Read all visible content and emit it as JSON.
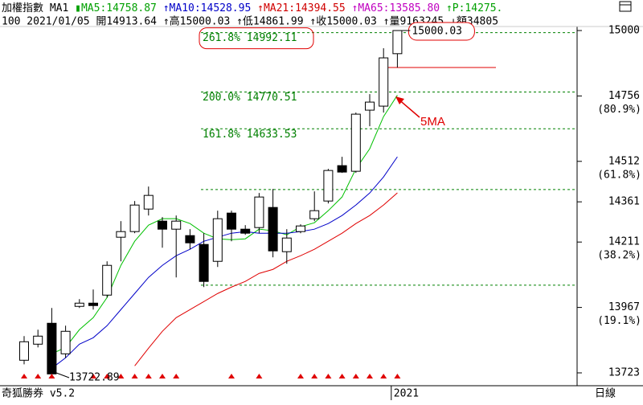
{
  "header": {
    "line1": [
      {
        "text": "加權指數 MA1 ",
        "color": "#000000"
      },
      {
        "text": "▮MA5:14758.87 ",
        "color": "#00a000"
      },
      {
        "text": "↑MA10:14528.95 ",
        "color": "#0000c8"
      },
      {
        "text": "↑MA21:14394.55 ",
        "color": "#d00000"
      },
      {
        "text": "↑MA65:13585.80 ",
        "color": "#c000c0"
      },
      {
        "text": "↑P:14275.",
        "color": "#00a000"
      }
    ],
    "line2": "100 2021/01/05 開14913.64 ↑高15000.03 ↑低14861.99 ↑收15000.03 ↑量9163245 ↓額34805"
  },
  "footer": {
    "app": "奇狐勝券 v5.2",
    "year": "2021",
    "period": "日線"
  },
  "chart_data": {
    "type": "candlestick",
    "categories": [
      null,
      null,
      null,
      null,
      null,
      null,
      null,
      null,
      null,
      null,
      null,
      null,
      null,
      null,
      null,
      null,
      null,
      null,
      null,
      null,
      null,
      null,
      null,
      null,
      null,
      null,
      null,
      null
    ],
    "open": [
      13770,
      13830,
      13908,
      13794,
      13971,
      13983,
      14013,
      14229,
      14250,
      14334,
      14289,
      14259,
      14235,
      14202,
      14139,
      14319,
      14259,
      14265,
      14340,
      14175,
      14250,
      14298,
      14364,
      14496,
      14475,
      14703,
      14718,
      14913.64
    ],
    "high": [
      13860,
      13884,
      13965,
      13899,
      13998,
      14034,
      14139,
      14289,
      14364,
      14418,
      14304,
      14310,
      14259,
      14244,
      14328,
      14328,
      14274,
      14394,
      14409,
      14259,
      14277,
      14400,
      14484,
      14529,
      14694,
      14763,
      14934,
      15000.03
    ],
    "low": [
      13755,
      13818,
      13723,
      13779,
      13965,
      13959,
      14004,
      14139,
      14244,
      14310,
      14190,
      14079,
      14184,
      14043,
      14118,
      14214,
      14238,
      14244,
      14154,
      14130,
      14244,
      14289,
      14355,
      14469,
      14469,
      14643,
      14694,
      14861.99
    ],
    "close": [
      13839,
      13860,
      13719,
      13878,
      13983,
      13974,
      14124,
      14250,
      14349,
      14385,
      14259,
      14289,
      14208,
      14064,
      14298,
      14259,
      14244,
      14379,
      14178,
      14226,
      14271,
      14328,
      14478,
      14472,
      14688,
      14733,
      14898,
      15000.03
    ],
    "up_color": "#ffffff",
    "down_color": "#000000",
    "series": [
      {
        "name": "MA5",
        "color": "#00c000",
        "values": [
          null,
          null,
          13794,
          13818,
          13884,
          13929,
          14004,
          14124,
          14214,
          14274,
          14298,
          14298,
          14280,
          14244,
          14223,
          14220,
          14223,
          14259,
          14253,
          14238,
          14268,
          14283,
          14328,
          14379,
          14484,
          14559,
          14679,
          14758.87
        ]
      },
      {
        "name": "MA10",
        "color": "#0000c8",
        "values": [
          null,
          null,
          13740,
          13779,
          13830,
          13854,
          13899,
          13959,
          14019,
          14079,
          14124,
          14160,
          14184,
          14214,
          14229,
          14244,
          14250,
          14244,
          14244,
          14244,
          14250,
          14259,
          14280,
          14310,
          14349,
          14394,
          14454,
          14528.95
        ]
      },
      {
        "name": "MA21",
        "color": "#e00000",
        "values": [
          null,
          null,
          null,
          null,
          null,
          null,
          null,
          null,
          13749,
          13815,
          13878,
          13929,
          13959,
          13989,
          14019,
          14043,
          14064,
          14094,
          14109,
          14139,
          14160,
          14184,
          14214,
          14244,
          14280,
          14310,
          14349,
          14394.55
        ]
      }
    ],
    "signals": [
      true,
      true,
      true,
      false,
      false,
      true,
      true,
      true,
      true,
      true,
      true,
      true,
      false,
      false,
      false,
      true,
      false,
      true,
      false,
      false,
      true,
      true,
      true,
      true,
      true,
      true,
      true,
      true
    ],
    "signal_color": "#e00000",
    "ylim": [
      13675,
      15024
    ],
    "yticks": [
      15000,
      14756,
      14512,
      14361,
      14211,
      13967,
      13723
    ],
    "ytick_percent": [
      null,
      "(80.9%)",
      "(61.8%)",
      null,
      "(38.2%)",
      "(19.1%)",
      null
    ],
    "fib_levels": [
      {
        "value": 14992.11,
        "label": "261.8% 14992.11"
      },
      {
        "value": 14770.51,
        "label": "200.0% 14770.51"
      },
      {
        "value": 14633.53,
        "label": "161.8% 14633.53"
      },
      {
        "value": 14407
      },
      {
        "value": 14050
      }
    ],
    "fib_color": "#008000",
    "low_line": 14861.99,
    "annotations": {
      "high": "15000.03",
      "low": "13722.89",
      "ma": "5MA"
    }
  }
}
